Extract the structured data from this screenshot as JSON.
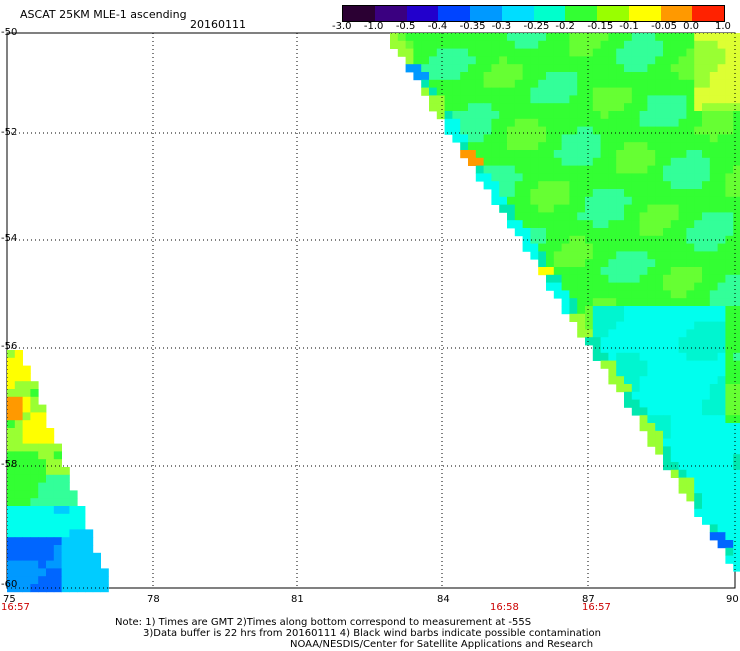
{
  "header": {
    "title": "ASCAT 25KM MLE-1 ascending",
    "date": "20160111"
  },
  "colorbar": {
    "labels": [
      "-3.0",
      "-1.0",
      "-0.5",
      "-0.4",
      "-0.35",
      "-0.3",
      "-0.25",
      "-0.2",
      "-0.15",
      "-0.1",
      "-0.05",
      "0.0",
      "1.0"
    ],
    "colors": [
      "#2b0033",
      "#3a0080",
      "#2200cc",
      "#0044ff",
      "#0099ff",
      "#00ddff",
      "#00ffcc",
      "#33ff33",
      "#99ff00",
      "#ffff00",
      "#ff9900",
      "#ff2200"
    ]
  },
  "map": {
    "lat_labels": [
      "-50",
      "-52",
      "-54",
      "-56",
      "-58",
      "-60"
    ],
    "lon_labels": [
      "75",
      "78",
      "81",
      "84",
      "87",
      "90"
    ],
    "time_labels": [
      {
        "lon": "75",
        "time": "16:57"
      },
      {
        "lon": "85",
        "time": "16:58"
      },
      {
        "lon": "87",
        "time": "16:57"
      }
    ],
    "lat_range": [
      -60,
      -50
    ],
    "lon_range": [
      75,
      90
    ]
  },
  "footer": {
    "line1": "Note: 1) Times are GMT 2)Times along bottom correspond to measurement at -55S",
    "line2": "3)Data buffer is 22 hrs from 20160111 4) Black wind barbs indicate possible contamination",
    "line3": "NOAA/NESDIS/Center for Satellite Applications and Research"
  }
}
